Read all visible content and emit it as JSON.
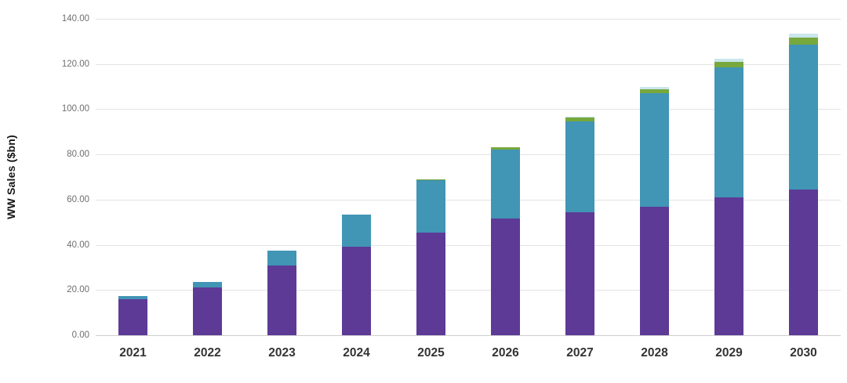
{
  "chart_data": {
    "type": "bar",
    "subtype": "stacked-vertical",
    "title": "",
    "legend": "none",
    "grid": "horizontal",
    "x_axis": {
      "categories": [
        "2021",
        "2022",
        "2023",
        "2024",
        "2025",
        "2026",
        "2027",
        "2028",
        "2029",
        "2030"
      ]
    },
    "y_axis": {
      "title": "WW Sales ($bn)",
      "min": 0,
      "max": 140,
      "tick_interval": 20,
      "tick_labels": [
        "0.00",
        "20.00",
        "40.00",
        "60.00",
        "80.00",
        "100.00",
        "120.00",
        "140.00"
      ]
    },
    "series": [
      {
        "name": "purple-segment",
        "color": "#5d3a96",
        "values": [
          16.0,
          21.0,
          31.0,
          39.0,
          45.5,
          51.5,
          54.5,
          57.0,
          61.0,
          64.5
        ]
      },
      {
        "name": "teal-segment",
        "color": "#4195b5",
        "values": [
          1.5,
          2.5,
          6.5,
          14.5,
          23.0,
          30.5,
          40.0,
          50.0,
          57.5,
          64.0
        ]
      },
      {
        "name": "green-segment",
        "color": "#77a83d",
        "values": [
          0,
          0,
          0,
          0,
          0.4,
          1.3,
          1.8,
          1.8,
          2.5,
          3.3
        ]
      },
      {
        "name": "light-blue-segment",
        "color": "#c9e6ec",
        "values": [
          0,
          0,
          0,
          0,
          0,
          0,
          0.5,
          1.2,
          1.2,
          1.5
        ]
      }
    ],
    "estimated_totals": [
      17.5,
      23.5,
      37.5,
      53.5,
      68.9,
      83.3,
      96.8,
      110.0,
      122.2,
      133.3
    ]
  },
  "colors": {
    "background": "#ffffff",
    "gridline": "#e3e3e3",
    "axis_baseline": "#cfcfcf",
    "y_tick_text": "#6f6f6f",
    "x_tick_text": "#333333",
    "axis_title_text": "#151515"
  }
}
